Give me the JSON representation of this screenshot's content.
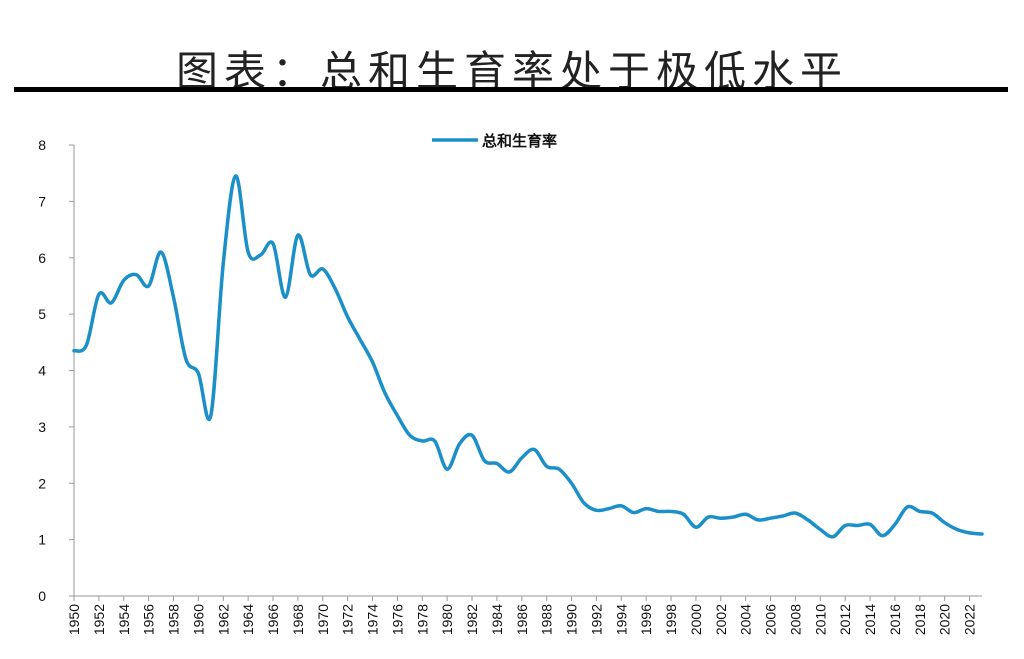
{
  "header": {
    "title": "图表：总和生育率处于极低水平"
  },
  "colors": {
    "line": "#1a8fc8",
    "rule": "#000000",
    "axis": "#999999"
  },
  "chart_data": {
    "type": "line",
    "title": "图表：总和生育率处于极低水平",
    "xlabel": "",
    "ylabel": "",
    "ylim": [
      0,
      8
    ],
    "yticks": [
      "0",
      "1",
      "2",
      "3",
      "4",
      "5",
      "6",
      "7",
      "8"
    ],
    "xlim": [
      1950,
      2023
    ],
    "xticks": [
      "1950",
      "1952",
      "1954",
      "1956",
      "1958",
      "1960",
      "1962",
      "1964",
      "1966",
      "1968",
      "1970",
      "1972",
      "1974",
      "1976",
      "1978",
      "1980",
      "1982",
      "1984",
      "1986",
      "1988",
      "1990",
      "1992",
      "1994",
      "1996",
      "1998",
      "2000",
      "2002",
      "2004",
      "2006",
      "2008",
      "2010",
      "2012",
      "2014",
      "2016",
      "2018",
      "2020",
      "2022"
    ],
    "legend": {
      "position": "top-center"
    },
    "grid": false,
    "series": [
      {
        "name": "总和生育率",
        "x": [
          1950,
          1951,
          1952,
          1953,
          1954,
          1955,
          1956,
          1957,
          1958,
          1959,
          1960,
          1961,
          1962,
          1963,
          1964,
          1965,
          1966,
          1967,
          1968,
          1969,
          1970,
          1971,
          1972,
          1973,
          1974,
          1975,
          1976,
          1977,
          1978,
          1979,
          1980,
          1981,
          1982,
          1983,
          1984,
          1985,
          1986,
          1987,
          1988,
          1989,
          1990,
          1991,
          1992,
          1993,
          1994,
          1995,
          1996,
          1997,
          1998,
          1999,
          2000,
          2001,
          2002,
          2003,
          2004,
          2005,
          2006,
          2007,
          2008,
          2009,
          2010,
          2011,
          2012,
          2013,
          2014,
          2015,
          2016,
          2017,
          2018,
          2019,
          2020,
          2021,
          2022,
          2023
        ],
        "y": [
          4.35,
          4.45,
          5.35,
          5.2,
          5.6,
          5.7,
          5.5,
          6.1,
          5.3,
          4.2,
          3.95,
          3.2,
          5.9,
          7.45,
          6.1,
          6.05,
          6.25,
          5.3,
          6.4,
          5.7,
          5.8,
          5.45,
          4.95,
          4.55,
          4.15,
          3.6,
          3.2,
          2.85,
          2.75,
          2.75,
          2.25,
          2.7,
          2.85,
          2.4,
          2.35,
          2.2,
          2.45,
          2.6,
          2.3,
          2.25,
          2.0,
          1.65,
          1.52,
          1.55,
          1.6,
          1.48,
          1.55,
          1.5,
          1.5,
          1.45,
          1.22,
          1.4,
          1.38,
          1.4,
          1.45,
          1.35,
          1.38,
          1.42,
          1.47,
          1.35,
          1.18,
          1.05,
          1.25,
          1.25,
          1.27,
          1.07,
          1.27,
          1.58,
          1.5,
          1.47,
          1.3,
          1.18,
          1.12,
          1.1
        ]
      }
    ]
  }
}
